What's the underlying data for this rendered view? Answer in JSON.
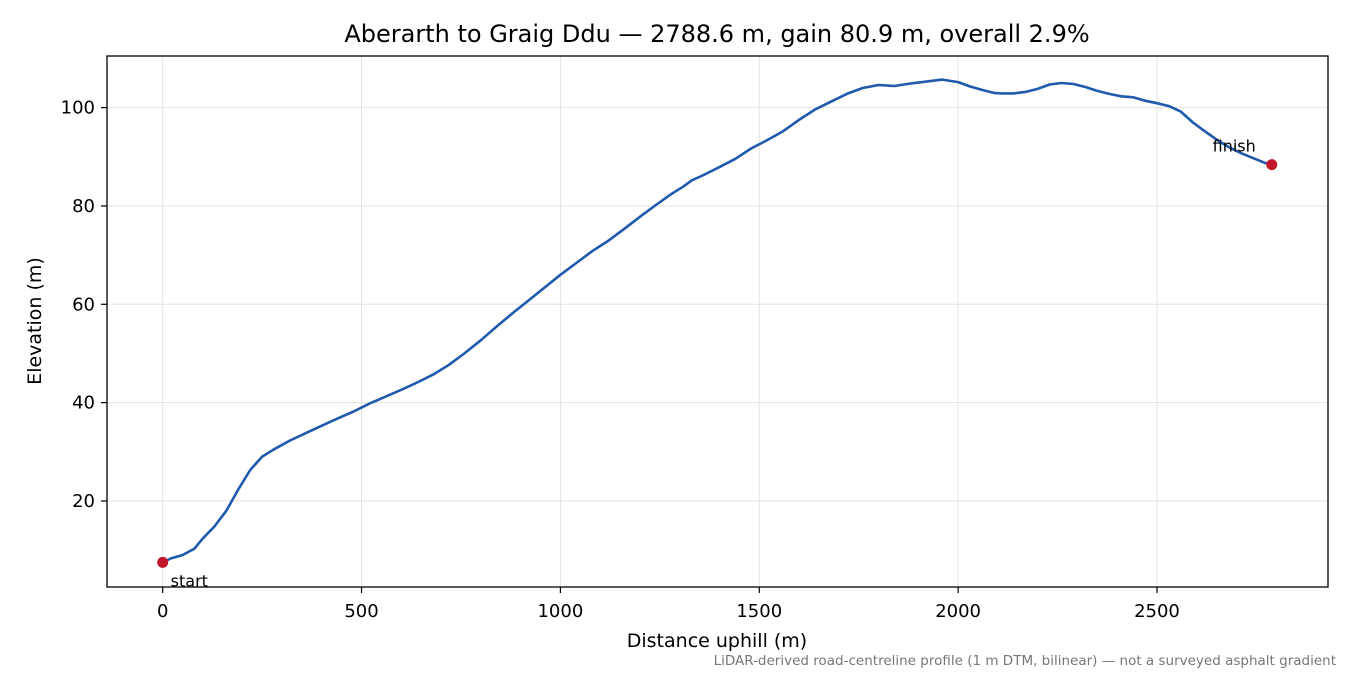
{
  "chart_data": {
    "type": "line",
    "title": "Aberarth to Graig Ddu — 2788.6 m, gain 80.9 m, overall 2.9%",
    "xlabel": "Distance uphill (m)",
    "ylabel": "Elevation (m)",
    "footnote": "LiDAR-derived road-centreline profile (1 m DTM, bilinear) — not a surveyed asphalt gradient",
    "xlim": [
      -140,
      2930
    ],
    "ylim": [
      2.5,
      110.5
    ],
    "xticks": [
      0,
      500,
      1000,
      1500,
      2000,
      2500
    ],
    "xtick_labels": [
      "0",
      "500",
      "1000",
      "1500",
      "2000",
      "2500"
    ],
    "yticks": [
      20,
      40,
      60,
      80,
      100
    ],
    "ytick_labels": [
      "20",
      "40",
      "60",
      "80",
      "100"
    ],
    "grid": true,
    "line_color": "#1f5aad",
    "marker_color": "#c0172a",
    "series": [
      {
        "x": [
          0,
          20,
          50,
          80,
          100,
          130,
          160,
          190,
          220,
          250,
          280,
          320,
          360,
          400,
          440,
          480,
          520,
          560,
          600,
          640,
          680,
          720,
          760,
          800,
          840,
          880,
          920,
          960,
          1000,
          1040,
          1080,
          1120,
          1160,
          1200,
          1240,
          1280,
          1310,
          1330,
          1360,
          1400,
          1440,
          1480,
          1520,
          1560,
          1600,
          1640,
          1680,
          1720,
          1760,
          1800,
          1840,
          1880,
          1920,
          1960,
          2000,
          2030,
          2060,
          2090,
          2110,
          2140,
          2170,
          2200,
          2230,
          2260,
          2290,
          2320,
          2350,
          2380,
          2410,
          2440,
          2470,
          2500,
          2530,
          2560,
          2590,
          2620,
          2650,
          2680,
          2710,
          2740,
          2770,
          2788.6
        ],
        "y": [
          7.5,
          8.3,
          9.0,
          10.3,
          12.3,
          14.8,
          18.0,
          22.3,
          26.3,
          29.0,
          30.5,
          32.3,
          33.8,
          35.3,
          36.8,
          38.2,
          39.8,
          41.2,
          42.6,
          44.1,
          45.7,
          47.7,
          50.1,
          52.7,
          55.5,
          58.2,
          60.8,
          63.4,
          66.0,
          68.4,
          70.8,
          72.9,
          75.3,
          77.8,
          80.2,
          82.5,
          84.0,
          85.2,
          86.3,
          87.9,
          89.6,
          91.7,
          93.4,
          95.2,
          97.5,
          99.6,
          101.2,
          102.8,
          104.0,
          104.6,
          104.4,
          104.9,
          105.3,
          105.7,
          105.2,
          104.3,
          103.6,
          103.0,
          102.9,
          102.9,
          103.2,
          103.8,
          104.7,
          105.0,
          104.8,
          104.2,
          103.4,
          102.8,
          102.3,
          102.1,
          101.4,
          100.9,
          100.3,
          99.2,
          97.0,
          95.2,
          93.5,
          92.0,
          90.8,
          89.8,
          88.8,
          88.4
        ]
      }
    ],
    "annotations": [
      {
        "text": "start",
        "x": 0,
        "y": 7.5
      },
      {
        "text": "finish",
        "x": 2788.6,
        "y": 88.4
      }
    ]
  }
}
